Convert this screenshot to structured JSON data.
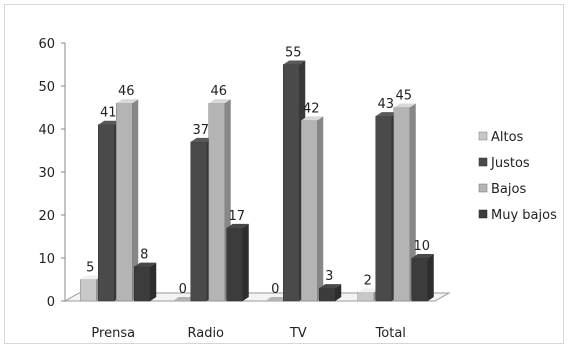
{
  "chart_data": {
    "type": "bar",
    "title": "",
    "xlabel": "",
    "ylabel": "",
    "categories": [
      "Prensa",
      "Radio",
      "TV",
      "Total"
    ],
    "series": [
      {
        "name": "Altos",
        "values": [
          5,
          0,
          0,
          2
        ],
        "color": "#c8c8c8"
      },
      {
        "name": "Justos",
        "values": [
          41,
          37,
          55,
          43
        ],
        "color": "#4a4a4a"
      },
      {
        "name": "Bajos",
        "values": [
          46,
          46,
          42,
          45
        ],
        "color": "#b4b4b4"
      },
      {
        "name": "Muy bajos",
        "values": [
          8,
          17,
          3,
          10
        ],
        "color": "#3c3c3c"
      }
    ],
    "ylim": [
      0,
      60
    ],
    "yticks": [
      0,
      10,
      20,
      30,
      40,
      50,
      60
    ],
    "grid": false,
    "legend_position": "right",
    "data_labels": true,
    "style": "3d-clustered-column"
  }
}
